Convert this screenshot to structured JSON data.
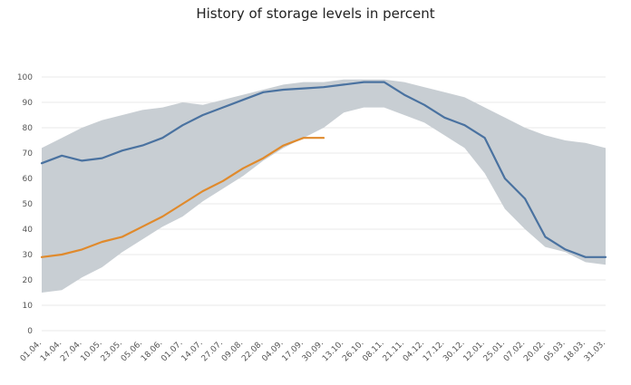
{
  "chart_data": {
    "type": "line",
    "title": "History of storage levels in percent",
    "xlabel": "",
    "ylabel": "",
    "ylim": [
      0,
      100
    ],
    "yticks": [
      0,
      10,
      20,
      30,
      40,
      50,
      60,
      70,
      80,
      90,
      100
    ],
    "grid": true,
    "categories": [
      "01.04.",
      "14.04.",
      "27.04.",
      "10.05.",
      "23.05.",
      "05.06.",
      "18.06.",
      "01.07.",
      "14.07.",
      "27.07.",
      "09.08.",
      "22.08.",
      "04.09.",
      "17.09.",
      "30.09.",
      "13.10.",
      "26.10.",
      "08.11.",
      "21.11.",
      "04.12.",
      "17.12.",
      "30.12.",
      "12.01.",
      "25.01.",
      "07.02.",
      "20.02.",
      "05.03.",
      "18.03.",
      "31.03."
    ],
    "range_band": {
      "upper": [
        72,
        76,
        80,
        83,
        85,
        87,
        88,
        90,
        89,
        91,
        93,
        95,
        97,
        98,
        98,
        99,
        99,
        99,
        98,
        96,
        94,
        92,
        88,
        84,
        80,
        77,
        75,
        74,
        72
      ],
      "lower": [
        15,
        16,
        21,
        25,
        31,
        36,
        41,
        45,
        51,
        56,
        61,
        67,
        72,
        76,
        80,
        86,
        88,
        88,
        85,
        82,
        77,
        72,
        62,
        48,
        40,
        33,
        31,
        27,
        26
      ]
    },
    "series": [
      {
        "color": "#4a72a0",
        "values": [
          66,
          69,
          67,
          68,
          71,
          73,
          76,
          81,
          85,
          88,
          91,
          94,
          95,
          95.5,
          96,
          97,
          98,
          98,
          93,
          89,
          84,
          81,
          76,
          60,
          52,
          37,
          32,
          29,
          29
        ]
      },
      {
        "color": "#e08a2c",
        "values": [
          29,
          30,
          32,
          35,
          37,
          41,
          45,
          50,
          55,
          59,
          64,
          68,
          73,
          76,
          76,
          null,
          null,
          null,
          null,
          null,
          null,
          null,
          null,
          null,
          null,
          null,
          null,
          null,
          null
        ]
      }
    ],
    "band_color": "#c8ced3"
  }
}
